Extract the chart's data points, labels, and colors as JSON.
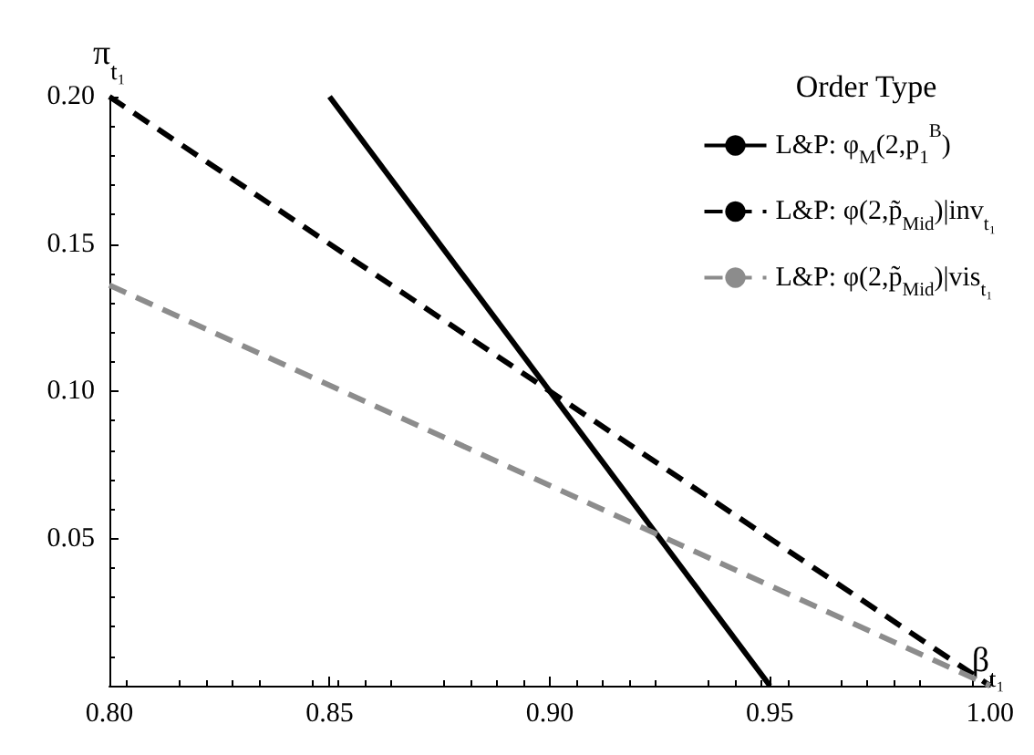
{
  "chart_data": {
    "type": "line",
    "xlabel": "β$_{t₁}$",
    "ylabel": "π$_{t₁}$",
    "legend_title": "Order Type",
    "legend": "top right",
    "grid": false,
    "xlim": [
      0.8,
      1.0
    ],
    "ylim": [
      0,
      0.2
    ],
    "xticks": [
      {
        "value": 0.8,
        "label": "0.80"
      },
      {
        "value": 0.85,
        "label": "0.85"
      },
      {
        "value": 0.9,
        "label": "0.90"
      },
      {
        "value": 0.95,
        "label": "0.95"
      },
      {
        "value": 1.0,
        "label": "1.00"
      }
    ],
    "yticks": [
      {
        "value": 0.05,
        "label": "0.05"
      },
      {
        "value": 0.1,
        "label": "0.10"
      },
      {
        "value": 0.15,
        "label": "0.15"
      },
      {
        "value": 0.2,
        "label": "0.20"
      }
    ],
    "marker": "none",
    "series": [
      {
        "name": "L&P: φ$_{M}$(2,p$_{1}$$^{B}$)",
        "color": "#000000",
        "line_style": "solid",
        "x": [
          0.85,
          0.95
        ],
        "values": [
          0.2,
          0
        ]
      },
      {
        "name": "L&P: φ(2,p̃$_{Mid}$)|inv$_{t₁}$",
        "color": "#000000",
        "line_style": "dashed",
        "x": [
          0.8,
          1.0
        ],
        "values": [
          0.2,
          0
        ]
      },
      {
        "name": "L&P: φ(2,p̃$_{Mid}$)|vis$_{t₁}$",
        "color": "#8c8c8c",
        "line_style": "dashed",
        "x": [
          0.8,
          1.0
        ],
        "values": [
          0.136,
          0
        ]
      }
    ]
  }
}
